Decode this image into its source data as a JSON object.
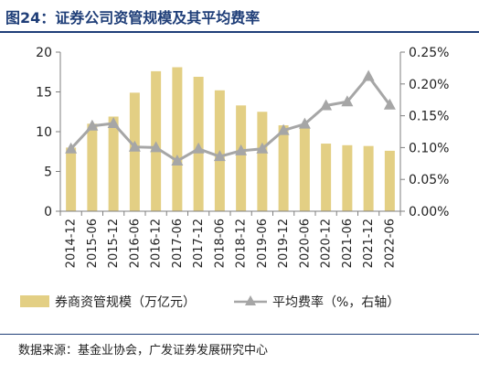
{
  "figure": {
    "title": "图24：证券公司资管规模及其平均费率",
    "source": "数据来源：基金业协会，广发证券发展研究中心"
  },
  "colors": {
    "title": "#1f3e78",
    "bar": "#e3cf84",
    "line": "#a6a6a6",
    "axis": "#7f7f7f"
  },
  "chart_data": {
    "type": "bar",
    "title": "",
    "categories": [
      "2014-12",
      "2015-06",
      "2015-12",
      "2016-06",
      "2016-12",
      "2017-06",
      "2017-12",
      "2018-06",
      "2018-12",
      "2019-06",
      "2019-12",
      "2020-06",
      "2020-12",
      "2021-06",
      "2021-12",
      "2022-06"
    ],
    "series": [
      {
        "name": "券商资管规模（万亿元）",
        "type": "bar",
        "axis": "left",
        "values": [
          8.0,
          11.0,
          11.9,
          14.9,
          17.6,
          18.1,
          16.9,
          15.2,
          13.3,
          12.5,
          10.8,
          10.5,
          8.5,
          8.3,
          8.2,
          7.6
        ]
      },
      {
        "name": "平均费率（%，右轴）",
        "type": "line",
        "axis": "right",
        "marker": "triangle",
        "values": [
          0.098,
          0.134,
          0.138,
          0.101,
          0.1,
          0.079,
          0.098,
          0.086,
          0.095,
          0.098,
          0.127,
          0.137,
          0.166,
          0.172,
          0.212,
          0.167
        ]
      }
    ],
    "y_left": {
      "ylim": [
        0,
        20
      ],
      "ticks": [
        0,
        5,
        10,
        15,
        20
      ],
      "tick_labels": [
        "0",
        "5",
        "10",
        "15",
        "20"
      ]
    },
    "y_right": {
      "ylim": [
        0,
        0.25
      ],
      "ticks": [
        0,
        0.05,
        0.1,
        0.15,
        0.2,
        0.25
      ],
      "tick_labels": [
        "0.00%",
        "0.05%",
        "0.10%",
        "0.15%",
        "0.20%",
        "0.25%"
      ]
    },
    "grid": false,
    "legend": "bottom"
  }
}
